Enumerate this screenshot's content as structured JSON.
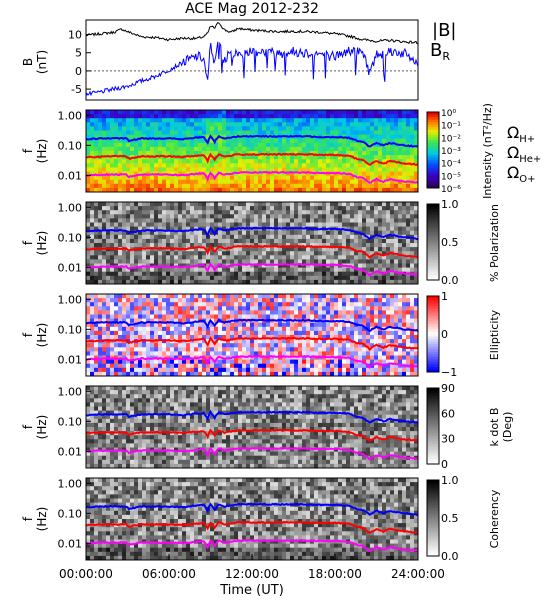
{
  "title": "ACE Mag 2012-232",
  "xlabel": "Time (UT)",
  "x_ticks": [
    "00:00:00",
    "06:00:00",
    "12:00:00",
    "18:00:00",
    "24:00:00"
  ],
  "chart_data": [
    {
      "type": "line",
      "panel": "B",
      "ylabel": "B",
      "yunit": "(nT)",
      "ylim": [
        -8,
        14
      ],
      "y_ticks": [
        10,
        5,
        0,
        -5
      ],
      "xlim_hours": [
        0,
        24
      ],
      "series": [
        {
          "name": "|B|",
          "color": "#000000",
          "x": [
            0,
            1,
            2,
            2.6,
            3,
            4,
            5,
            6,
            7,
            8,
            8.5,
            8.8,
            9.0,
            9.3,
            9.6,
            10,
            10.5,
            11,
            12,
            13,
            14,
            15,
            16,
            17,
            18,
            19,
            20,
            21,
            22,
            23,
            24
          ],
          "y": [
            9.8,
            10.2,
            10.6,
            11.5,
            10.8,
            9.4,
            9.2,
            8.6,
            9.0,
            8.9,
            9.4,
            10.3,
            12.3,
            11.8,
            13.4,
            11.3,
            10.6,
            11.7,
            11.2,
            11.0,
            10.8,
            10.9,
            10.8,
            10.6,
            10.2,
            9.6,
            8.6,
            8.2,
            8.4,
            8.0,
            7.8
          ]
        },
        {
          "name": "B_R",
          "color": "#0000ff",
          "x": [
            0,
            0.5,
            1,
            2,
            3,
            4,
            5,
            6,
            7,
            8,
            8.5,
            8.8,
            9.0,
            9.3,
            9.6,
            10,
            10.5,
            11,
            12,
            13,
            14,
            15,
            16,
            17,
            18,
            19,
            20,
            20.5,
            21,
            22,
            23,
            24
          ],
          "y": [
            -6.5,
            -6.2,
            -5.8,
            -5.0,
            -4.2,
            -2.8,
            -1.5,
            0.3,
            2.3,
            4.0,
            3.5,
            -3.5,
            7.5,
            2.0,
            8.5,
            3.0,
            5.0,
            4.5,
            5.6,
            5.2,
            4.9,
            5.3,
            5.0,
            4.6,
            4.0,
            5.5,
            5.2,
            -0.5,
            4.5,
            5.5,
            4.8,
            2.0
          ]
        }
      ],
      "legend": [
        "|B|",
        "B_R"
      ]
    },
    {
      "type": "heatmap",
      "panel": "Intensity",
      "ylabel": "f",
      "yunit": "(Hz)",
      "y_ticks": [
        "1.00",
        "0.10",
        "0.01"
      ],
      "colorbar_label": "Intensity (nT²/Hz)",
      "colorbar_ticks": [
        "10⁰",
        "10⁻¹",
        "10⁻²",
        "10⁻³",
        "10⁻⁴",
        "10⁻⁵",
        "10⁻⁶"
      ],
      "scale": "log",
      "overlays": [
        "Ω_H+",
        "Ω_He+",
        "Ω_O+"
      ]
    },
    {
      "type": "heatmap",
      "panel": "Polarization",
      "ylabel": "f",
      "yunit": "(Hz)",
      "y_ticks": [
        "1.00",
        "0.10",
        "0.01"
      ],
      "colorbar_label": "% Polarization",
      "colorbar_ticks": [
        "1.0",
        "0.5",
        "0.0"
      ]
    },
    {
      "type": "heatmap",
      "panel": "Ellipticity",
      "ylabel": "f",
      "yunit": "(Hz)",
      "y_ticks": [
        "1.00",
        "0.10",
        "0.01"
      ],
      "colorbar_label": "Ellipticity",
      "colorbar_ticks": [
        "1",
        "0",
        "−1"
      ]
    },
    {
      "type": "heatmap",
      "panel": "k dot B",
      "ylabel": "f",
      "yunit": "(Hz)",
      "y_ticks": [
        "1.00",
        "0.10",
        "0.01"
      ],
      "colorbar_label": "k dot B",
      "colorbar_unit": "(Deg)",
      "colorbar_ticks": [
        "90",
        "60",
        "30",
        "0"
      ]
    },
    {
      "type": "heatmap",
      "panel": "Coherency",
      "ylabel": "f",
      "yunit": "(Hz)",
      "y_ticks": [
        "1.00",
        "0.10",
        "0.01"
      ],
      "colorbar_label": "Coherency",
      "colorbar_ticks": [
        "1.0",
        "0.5",
        "0.0"
      ]
    }
  ],
  "gyro_lines": {
    "x": [
      0,
      1,
      2,
      2.9,
      3.1,
      4,
      5,
      6,
      7,
      8,
      8.5,
      8.8,
      9.0,
      9.3,
      9.6,
      10,
      11,
      12,
      13,
      14,
      15,
      16,
      17,
      18,
      19,
      19.6,
      20,
      20.5,
      21,
      21.5,
      22,
      23,
      24
    ],
    "hplus_hz": [
      0.16,
      0.17,
      0.17,
      0.17,
      0.14,
      0.17,
      0.17,
      0.17,
      0.16,
      0.18,
      0.19,
      0.12,
      0.2,
      0.13,
      0.2,
      0.17,
      0.2,
      0.2,
      0.2,
      0.2,
      0.2,
      0.2,
      0.19,
      0.19,
      0.18,
      0.14,
      0.13,
      0.09,
      0.12,
      0.1,
      0.12,
      0.1,
      0.09
    ],
    "heplus_hz": [
      0.04,
      0.042,
      0.043,
      0.043,
      0.036,
      0.043,
      0.043,
      0.043,
      0.041,
      0.045,
      0.048,
      0.03,
      0.05,
      0.033,
      0.05,
      0.042,
      0.05,
      0.05,
      0.05,
      0.05,
      0.05,
      0.05,
      0.048,
      0.048,
      0.045,
      0.035,
      0.033,
      0.022,
      0.03,
      0.025,
      0.03,
      0.025,
      0.023
    ],
    "oplus_hz": [
      0.01,
      0.0105,
      0.0107,
      0.0107,
      0.009,
      0.0107,
      0.0107,
      0.0107,
      0.0102,
      0.0112,
      0.012,
      0.0075,
      0.0125,
      0.0082,
      0.0125,
      0.0105,
      0.0125,
      0.0125,
      0.0125,
      0.0125,
      0.0125,
      0.0125,
      0.012,
      0.012,
      0.0112,
      0.0088,
      0.0082,
      0.0056,
      0.0075,
      0.0062,
      0.0075,
      0.0062,
      0.0058
    ]
  },
  "legend_b": {
    "b_abs": "|B|",
    "b_r": "B_R"
  },
  "ion_labels": {
    "h": "Ω_H+",
    "he": "Ω_He+",
    "o": "Ω_O+"
  },
  "colors": {
    "blue": "#0000ff",
    "red": "#ff0000",
    "magenta": "#ff00ff",
    "black": "#000000"
  }
}
